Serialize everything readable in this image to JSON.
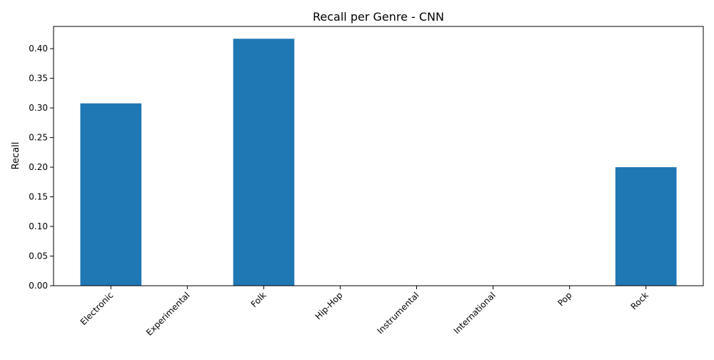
{
  "chart_data": {
    "type": "bar",
    "title": "Recall per Genre - CNN",
    "xlabel": "",
    "ylabel": "Recall",
    "categories": [
      "Electronic",
      "Experimental",
      "Folk",
      "Hip-Hop",
      "Instrumental",
      "International",
      "Pop",
      "Rock"
    ],
    "values": [
      0.3077,
      0.0,
      0.4167,
      0.0,
      0.0,
      0.0,
      0.0,
      0.2
    ],
    "ylim": [
      0,
      0.4375
    ],
    "yticks": [
      "0.00",
      "0.05",
      "0.10",
      "0.15",
      "0.20",
      "0.25",
      "0.30",
      "0.35",
      "0.40"
    ],
    "grid": false,
    "legend": "none",
    "bar_color": "#1f77b4"
  }
}
